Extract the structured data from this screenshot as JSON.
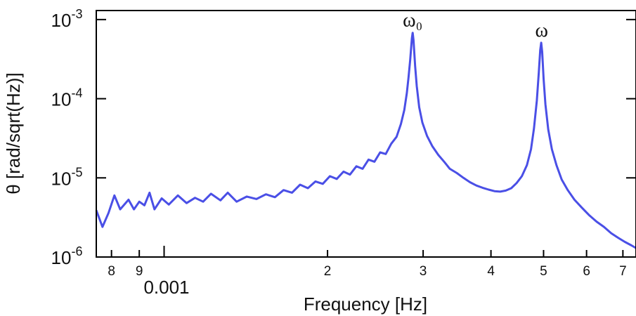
{
  "chart_data": {
    "type": "line",
    "title": "",
    "xlabel": "Frequency [Hz]",
    "ylabel": "θ [rad/sqrt(Hz)]",
    "x_scale": "log",
    "y_scale": "log",
    "xlim": [
      0.00075,
      0.0074
    ],
    "ylim": [
      1e-06,
      0.0013
    ],
    "x_ticks": [
      {
        "value": 0.0008,
        "label": "8"
      },
      {
        "value": 0.0009,
        "label": "9"
      },
      {
        "value": 0.001,
        "label": ""
      },
      {
        "value": 0.002,
        "label": "2"
      },
      {
        "value": 0.003,
        "label": "3"
      },
      {
        "value": 0.004,
        "label": "4"
      },
      {
        "value": 0.005,
        "label": "5"
      },
      {
        "value": 0.006,
        "label": "6"
      },
      {
        "value": 0.007,
        "label": "7"
      }
    ],
    "x_decade_label": "0.001",
    "y_ticks": [
      {
        "value": 1e-06,
        "base": "10",
        "exp": "-6"
      },
      {
        "value": 1e-05,
        "base": "10",
        "exp": "-5"
      },
      {
        "value": 0.0001,
        "base": "10",
        "exp": "-4"
      },
      {
        "value": 0.001,
        "base": "10",
        "exp": "-3"
      }
    ],
    "annotations": [
      {
        "text": "ω₀",
        "x": 0.00287,
        "y": 0.00076
      },
      {
        "text": "ω",
        "x": 0.00496,
        "y": 0.00056
      }
    ],
    "grid": false,
    "legend": "none",
    "series": [
      {
        "color": "#4a4fe6",
        "points": [
          [
            0.00075,
            3.9e-06
          ],
          [
            0.00077,
            2.4e-06
          ],
          [
            0.00079,
            3.6e-06
          ],
          [
            0.00081,
            6e-06
          ],
          [
            0.00083,
            4e-06
          ],
          [
            0.00086,
            5.3e-06
          ],
          [
            0.00088,
            4e-06
          ],
          [
            0.0009,
            5e-06
          ],
          [
            0.00092,
            4.5e-06
          ],
          [
            0.00094,
            6.5e-06
          ],
          [
            0.00096,
            4e-06
          ],
          [
            0.00099,
            5.5e-06
          ],
          [
            0.00102,
            4.6e-06
          ],
          [
            0.00106,
            6e-06
          ],
          [
            0.0011,
            4.8e-06
          ],
          [
            0.00114,
            5.6e-06
          ],
          [
            0.00118,
            5e-06
          ],
          [
            0.00122,
            6.3e-06
          ],
          [
            0.00127,
            5.2e-06
          ],
          [
            0.00131,
            6.5e-06
          ],
          [
            0.00136,
            5e-06
          ],
          [
            0.00142,
            5.8e-06
          ],
          [
            0.00148,
            5.4e-06
          ],
          [
            0.00154,
            6.2e-06
          ],
          [
            0.0016,
            5.7e-06
          ],
          [
            0.00166,
            7e-06
          ],
          [
            0.00172,
            6.5e-06
          ],
          [
            0.00178,
            8.2e-06
          ],
          [
            0.00184,
            7.4e-06
          ],
          [
            0.0019,
            9e-06
          ],
          [
            0.00196,
            8.4e-06
          ],
          [
            0.00202,
            1.05e-05
          ],
          [
            0.00208,
            9.7e-06
          ],
          [
            0.00214,
            1.2e-05
          ],
          [
            0.0022,
            1.1e-05
          ],
          [
            0.00226,
            1.4e-05
          ],
          [
            0.00232,
            1.3e-05
          ],
          [
            0.00238,
            1.7e-05
          ],
          [
            0.00244,
            1.6e-05
          ],
          [
            0.0025,
            2.1e-05
          ],
          [
            0.00256,
            2e-05
          ],
          [
            0.00262,
            2.7e-05
          ],
          [
            0.00268,
            3.3e-05
          ],
          [
            0.00273,
            4.8e-05
          ],
          [
            0.00277,
            7.2e-05
          ],
          [
            0.0028,
            0.000118
          ],
          [
            0.00282,
            0.000185
          ],
          [
            0.00284,
            0.00031
          ],
          [
            0.00286,
            0.00058
          ],
          [
            0.00287,
            0.00068
          ],
          [
            0.00288,
            0.00055
          ],
          [
            0.0029,
            0.00026
          ],
          [
            0.00292,
            0.000145
          ],
          [
            0.00295,
            7.8e-05
          ],
          [
            0.00299,
            5e-05
          ],
          [
            0.00305,
            3.4e-05
          ],
          [
            0.00312,
            2.5e-05
          ],
          [
            0.0032,
            1.95e-05
          ],
          [
            0.00328,
            1.6e-05
          ],
          [
            0.00336,
            1.3e-05
          ],
          [
            0.00346,
            1.15e-05
          ],
          [
            0.00356,
            1e-05
          ],
          [
            0.00366,
            8.8e-06
          ],
          [
            0.00376,
            8e-06
          ],
          [
            0.00386,
            7.5e-06
          ],
          [
            0.00396,
            7.1e-06
          ],
          [
            0.00406,
            6.8e-06
          ],
          [
            0.00416,
            6.7e-06
          ],
          [
            0.00426,
            6.9e-06
          ],
          [
            0.00436,
            7.4e-06
          ],
          [
            0.00446,
            8.6e-06
          ],
          [
            0.00456,
            1.05e-05
          ],
          [
            0.00466,
            1.45e-05
          ],
          [
            0.00474,
            2.3e-05
          ],
          [
            0.0048,
            4.2e-05
          ],
          [
            0.00486,
            9.5e-05
          ],
          [
            0.0049,
            0.000215
          ],
          [
            0.00493,
            0.00041
          ],
          [
            0.00495,
            0.00051
          ],
          [
            0.00497,
            0.00039
          ],
          [
            0.005,
            0.00018
          ],
          [
            0.00504,
            8.5e-05
          ],
          [
            0.0051,
            4.1e-05
          ],
          [
            0.00518,
            2.3e-05
          ],
          [
            0.00528,
            1.45e-05
          ],
          [
            0.0054,
            9.5e-06
          ],
          [
            0.00554,
            7e-06
          ],
          [
            0.0057,
            5.3e-06
          ],
          [
            0.00588,
            4.2e-06
          ],
          [
            0.00606,
            3.4e-06
          ],
          [
            0.00626,
            2.8e-06
          ],
          [
            0.00646,
            2.4e-06
          ],
          [
            0.00666,
            2e-06
          ],
          [
            0.00686,
            1.75e-06
          ],
          [
            0.00706,
            1.55e-06
          ],
          [
            0.00726,
            1.4e-06
          ],
          [
            0.0074,
            1.3e-06
          ]
        ]
      }
    ]
  }
}
